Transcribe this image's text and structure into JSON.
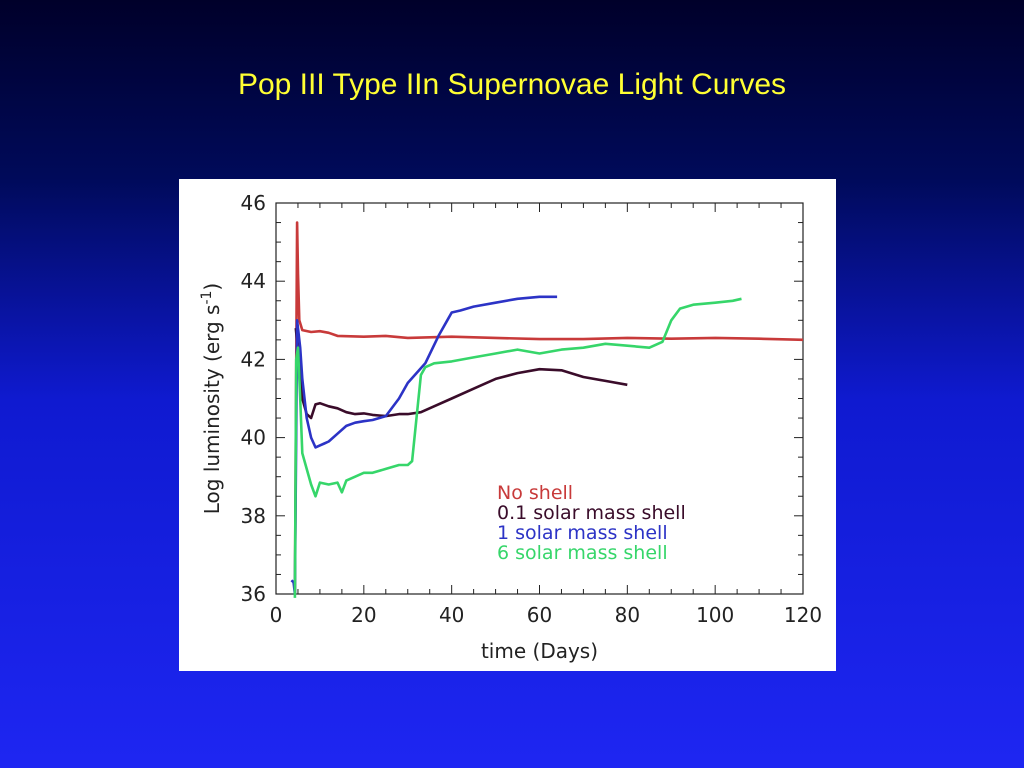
{
  "slide": {
    "title": "Pop III Type IIn Supernovae Light Curves"
  },
  "chart_data": {
    "type": "line",
    "xlabel": "time (Days)",
    "ylabel": "Log luminosity (erg s",
    "ylabel_unit_exponent": "-1",
    "ylabel_suffix": ")",
    "xlim": [
      0,
      120
    ],
    "ylim": [
      36,
      46
    ],
    "xticks": [
      0,
      20,
      40,
      60,
      80,
      100,
      120
    ],
    "yticks": [
      36,
      38,
      40,
      42,
      44,
      46
    ],
    "grid": false,
    "legend_placement": "lower-right",
    "series": [
      {
        "name": "No shell",
        "color": "#c83a3a",
        "points": [
          [
            4.3,
            36.0
          ],
          [
            4.6,
            41.8
          ],
          [
            4.8,
            45.5
          ],
          [
            5.0,
            44.2
          ],
          [
            5.3,
            43.0
          ],
          [
            6,
            42.75
          ],
          [
            8,
            42.7
          ],
          [
            10,
            42.72
          ],
          [
            12,
            42.68
          ],
          [
            14,
            42.6
          ],
          [
            20,
            42.58
          ],
          [
            25,
            42.6
          ],
          [
            30,
            42.55
          ],
          [
            40,
            42.58
          ],
          [
            50,
            42.55
          ],
          [
            60,
            42.52
          ],
          [
            70,
            42.52
          ],
          [
            80,
            42.55
          ],
          [
            90,
            42.53
          ],
          [
            100,
            42.55
          ],
          [
            110,
            42.53
          ],
          [
            120,
            42.5
          ]
        ]
      },
      {
        "name": "0.1 solar mass shell",
        "color": "#3a0c2a",
        "points": [
          [
            4.5,
            42.8
          ],
          [
            5,
            42.2
          ],
          [
            6,
            41.0
          ],
          [
            7,
            40.6
          ],
          [
            8,
            40.5
          ],
          [
            9,
            40.85
          ],
          [
            10,
            40.88
          ],
          [
            12,
            40.8
          ],
          [
            14,
            40.75
          ],
          [
            16,
            40.65
          ],
          [
            18,
            40.6
          ],
          [
            20,
            40.62
          ],
          [
            22,
            40.58
          ],
          [
            25,
            40.55
          ],
          [
            28,
            40.6
          ],
          [
            30,
            40.6
          ],
          [
            33,
            40.65
          ],
          [
            36,
            40.8
          ],
          [
            40,
            41.0
          ],
          [
            45,
            41.25
          ],
          [
            50,
            41.5
          ],
          [
            55,
            41.65
          ],
          [
            60,
            41.75
          ],
          [
            65,
            41.72
          ],
          [
            70,
            41.55
          ],
          [
            75,
            41.45
          ],
          [
            80,
            41.35
          ]
        ]
      },
      {
        "name": "1 solar mass shell",
        "color": "#2c33c6",
        "points": [
          [
            3.5,
            36.35
          ],
          [
            4.0,
            36.3
          ],
          [
            4.3,
            36.0
          ],
          [
            4.8,
            43.0
          ],
          [
            5.5,
            42.3
          ],
          [
            6,
            41.5
          ],
          [
            7,
            40.5
          ],
          [
            8,
            40.0
          ],
          [
            9,
            39.75
          ],
          [
            10,
            39.8
          ],
          [
            11,
            39.85
          ],
          [
            12,
            39.9
          ],
          [
            14,
            40.1
          ],
          [
            16,
            40.3
          ],
          [
            18,
            40.38
          ],
          [
            20,
            40.42
          ],
          [
            22,
            40.45
          ],
          [
            25,
            40.55
          ],
          [
            28,
            41.0
          ],
          [
            30,
            41.4
          ],
          [
            34,
            41.9
          ],
          [
            37,
            42.6
          ],
          [
            39,
            43.0
          ],
          [
            40,
            43.2
          ],
          [
            42,
            43.25
          ],
          [
            45,
            43.35
          ],
          [
            50,
            43.45
          ],
          [
            55,
            43.55
          ],
          [
            60,
            43.6
          ],
          [
            64,
            43.6
          ]
        ]
      },
      {
        "name": "6 solar mass shell",
        "color": "#36d66a",
        "points": [
          [
            4.3,
            35.9
          ],
          [
            4.6,
            42.0
          ],
          [
            5,
            42.3
          ],
          [
            5.5,
            41.0
          ],
          [
            6,
            39.6
          ],
          [
            7,
            39.2
          ],
          [
            8,
            38.8
          ],
          [
            9,
            38.5
          ],
          [
            10,
            38.85
          ],
          [
            12,
            38.8
          ],
          [
            14,
            38.85
          ],
          [
            15,
            38.6
          ],
          [
            16,
            38.9
          ],
          [
            18,
            39.0
          ],
          [
            20,
            39.1
          ],
          [
            22,
            39.1
          ],
          [
            25,
            39.2
          ],
          [
            28,
            39.3
          ],
          [
            30,
            39.3
          ],
          [
            31,
            39.4
          ],
          [
            32,
            40.5
          ],
          [
            33,
            41.6
          ],
          [
            34,
            41.8
          ],
          [
            36,
            41.9
          ],
          [
            40,
            41.95
          ],
          [
            45,
            42.05
          ],
          [
            50,
            42.15
          ],
          [
            55,
            42.25
          ],
          [
            60,
            42.15
          ],
          [
            65,
            42.25
          ],
          [
            70,
            42.3
          ],
          [
            75,
            42.4
          ],
          [
            80,
            42.35
          ],
          [
            85,
            42.3
          ],
          [
            88,
            42.45
          ],
          [
            90,
            43.0
          ],
          [
            92,
            43.3
          ],
          [
            95,
            43.4
          ],
          [
            100,
            43.45
          ],
          [
            104,
            43.5
          ],
          [
            106,
            43.55
          ]
        ]
      }
    ]
  }
}
